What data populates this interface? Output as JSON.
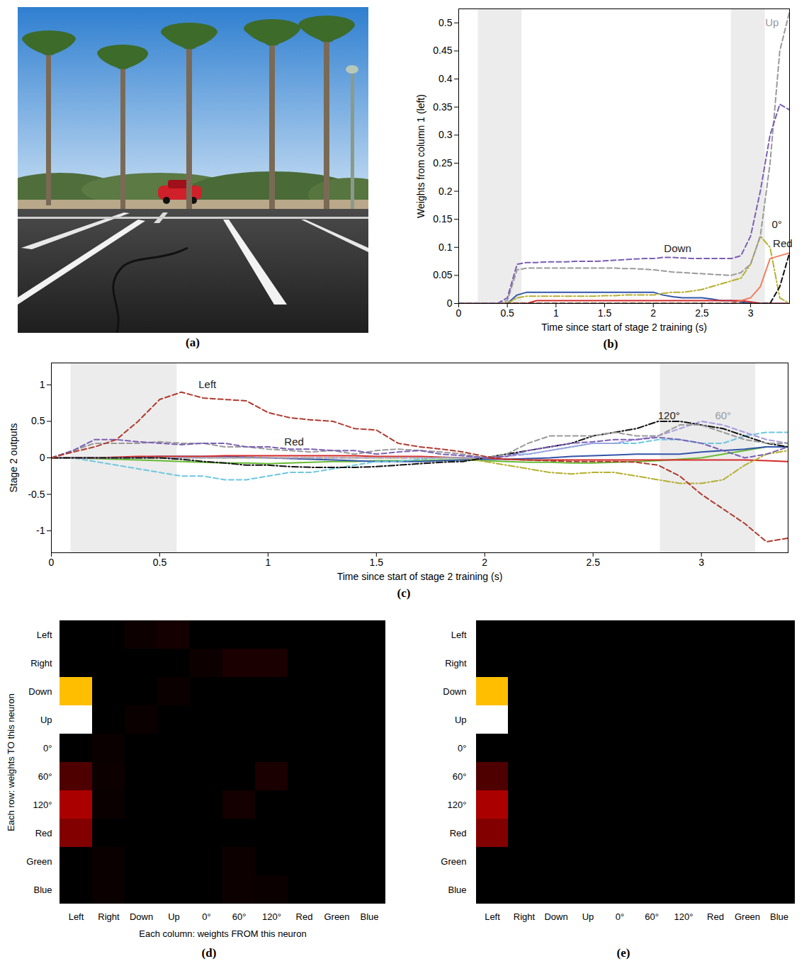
{
  "image": {
    "panel": "(a)"
  },
  "chart_data": [
    {
      "panel": "(b)",
      "type": "line",
      "x_label": "Time since start of stage 2 training (s)",
      "y_label": "Weights from column 1 (left)",
      "x": [
        0,
        0.1,
        0.2,
        0.3,
        0.4,
        0.5,
        0.6,
        0.7,
        0.8,
        0.9,
        1,
        1.1,
        1.2,
        1.3,
        1.4,
        1.5,
        1.6,
        1.7,
        1.8,
        1.9,
        2,
        2.1,
        2.2,
        2.3,
        2.4,
        2.5,
        2.6,
        2.7,
        2.8,
        2.9,
        3,
        3.1,
        3.2,
        3.3,
        3.4
      ],
      "xlim": [
        0,
        3.4
      ],
      "xticks": [
        0,
        0.5,
        1,
        1.5,
        2,
        2.5,
        3
      ],
      "ylim": [
        0,
        0.525
      ],
      "yticks": [
        0,
        0.05,
        0.1,
        0.15,
        0.2,
        0.25,
        0.3,
        0.35,
        0.4,
        0.45,
        0.5
      ],
      "shaded": [
        [
          0.2,
          0.65
        ],
        [
          2.8,
          3.15
        ]
      ],
      "series": [
        {
          "color": "#3355aa",
          "line_style": "solid",
          "values": [
            0,
            0,
            0,
            0,
            0,
            0,
            0.015,
            0.02,
            0.02,
            0.02,
            0.02,
            0.02,
            0.02,
            0.02,
            0.02,
            0.02,
            0.02,
            0.02,
            0.02,
            0.02,
            0.02,
            0.015,
            0.012,
            0.01,
            0.01,
            0.01,
            0.008,
            0.005,
            0.005,
            0.003,
            0,
            0,
            0,
            0,
            0
          ]
        },
        {
          "color": "#d62a2a",
          "line_style": "solid",
          "values": [
            0,
            0,
            0,
            0,
            0,
            0,
            0,
            0,
            0.005,
            0.005,
            0.005,
            0.005,
            0.005,
            0.005,
            0.005,
            0.005,
            0.005,
            0.005,
            0.005,
            0.005,
            0.005,
            0.005,
            0.005,
            0.005,
            0.005,
            0.005,
            0.005,
            0.005,
            0.005,
            0.005,
            0.003,
            0,
            0,
            0,
            0
          ]
        },
        {
          "color": "#b5b030",
          "line_style": "dashdot",
          "values": [
            0,
            0,
            0,
            0,
            0,
            0,
            0.01,
            0.013,
            0.013,
            0.013,
            0.013,
            0.013,
            0.013,
            0.013,
            0.013,
            0.014,
            0.014,
            0.015,
            0.015,
            0.015,
            0.015,
            0.018,
            0.02,
            0.02,
            0.022,
            0.025,
            0.03,
            0.035,
            0.04,
            0.045,
            0.07,
            0.12,
            0.1,
            0.01,
            0
          ]
        },
        {
          "color": "#f08060",
          "line_style": "solid",
          "values": [
            0,
            0,
            0,
            0,
            0,
            0,
            0,
            0,
            0,
            0,
            0,
            0,
            0,
            0,
            0,
            0,
            0,
            0,
            0,
            0,
            0,
            0,
            0,
            0,
            0,
            0,
            0,
            0,
            0,
            0.005,
            0.01,
            0.03,
            0.08,
            0.085,
            0.09
          ]
        },
        {
          "color": "#111111",
          "line_style": "dashed",
          "values": [
            0,
            0,
            0,
            0,
            0,
            0,
            0,
            0,
            0,
            0,
            0,
            0,
            0,
            0,
            0,
            0,
            0,
            0,
            0,
            0,
            0,
            0,
            0,
            0,
            0,
            0,
            0,
            0,
            0,
            0,
            0,
            0,
            0,
            0.03,
            0.09
          ]
        },
        {
          "color": "#9a9a9a",
          "line_style": "dashed",
          "values": [
            0,
            0,
            0,
            0,
            0,
            0.005,
            0.06,
            0.063,
            0.063,
            0.063,
            0.063,
            0.063,
            0.063,
            0.063,
            0.063,
            0.063,
            0.063,
            0.062,
            0.062,
            0.061,
            0.06,
            0.058,
            0.056,
            0.055,
            0.054,
            0.053,
            0.052,
            0.051,
            0.05,
            0.055,
            0.07,
            0.12,
            0.25,
            0.45,
            0.52
          ]
        },
        {
          "color": "#7b5fb5",
          "line_style": "dashed",
          "values": [
            0,
            0,
            0,
            0,
            0,
            0.01,
            0.07,
            0.073,
            0.073,
            0.074,
            0.074,
            0.074,
            0.075,
            0.075,
            0.075,
            0.076,
            0.077,
            0.078,
            0.079,
            0.08,
            0.08,
            0.082,
            0.082,
            0.081,
            0.08,
            0.08,
            0.08,
            0.08,
            0.08,
            0.085,
            0.12,
            0.2,
            0.3,
            0.355,
            0.345
          ]
        }
      ],
      "annotations": [
        {
          "text": "Down",
          "x": 2.25,
          "y": 0.098,
          "color": "#222222"
        },
        {
          "text": "Up",
          "x": 3.22,
          "y": 0.5,
          "color": "#999999"
        },
        {
          "text": "0°",
          "x": 3.27,
          "y": 0.14,
          "color": "#222222"
        },
        {
          "text": "Red",
          "x": 3.33,
          "y": 0.106,
          "color": "#222222"
        }
      ]
    },
    {
      "panel": "(c)",
      "type": "line",
      "x_label": "Time since start of stage 2 training (s)",
      "y_label": "Stage 2 outputs",
      "x": [
        0,
        0.1,
        0.2,
        0.3,
        0.4,
        0.5,
        0.6,
        0.7,
        0.8,
        0.9,
        1,
        1.1,
        1.2,
        1.3,
        1.4,
        1.5,
        1.6,
        1.7,
        1.8,
        1.9,
        2,
        2.1,
        2.2,
        2.3,
        2.4,
        2.5,
        2.6,
        2.7,
        2.8,
        2.9,
        3,
        3.1,
        3.2,
        3.3,
        3.4
      ],
      "xlim": [
        0,
        3.4
      ],
      "xticks": [
        0,
        0.5,
        1,
        1.5,
        2,
        2.5,
        3
      ],
      "ylim": [
        -1.3,
        1.3
      ],
      "yticks": [
        -1,
        -0.5,
        0,
        0.5,
        1
      ],
      "shaded": [
        [
          0.09,
          0.58
        ],
        [
          2.81,
          3.25
        ]
      ],
      "series": [
        {
          "color": "#66bb33",
          "line_style": "solid",
          "values": [
            0,
            0,
            -0.01,
            -0.02,
            -0.03,
            -0.04,
            -0.05,
            -0.06,
            -0.07,
            -0.07,
            -0.08,
            -0.07,
            -0.06,
            -0.05,
            -0.05,
            -0.04,
            -0.04,
            -0.04,
            -0.03,
            -0.03,
            -0.04,
            -0.05,
            -0.06,
            -0.06,
            -0.07,
            -0.07,
            -0.06,
            -0.05,
            -0.04,
            -0.02,
            0,
            0.05,
            0.1,
            0.15,
            0.15
          ]
        },
        {
          "color": "#3355aa",
          "line_style": "solid",
          "values": [
            0,
            0,
            0,
            0,
            0.01,
            0.02,
            0.02,
            0.02,
            0.02,
            0.01,
            0,
            -0.01,
            -0.02,
            -0.03,
            -0.04,
            -0.05,
            -0.05,
            -0.05,
            -0.04,
            -0.03,
            -0.02,
            -0.02,
            -0.01,
            0,
            0.02,
            0.03,
            0.04,
            0.05,
            0.05,
            0.05,
            0.08,
            0.1,
            0.12,
            0.15,
            0.15
          ]
        },
        {
          "color": "#d62a2a",
          "line_style": "solid",
          "values": [
            0,
            0,
            0,
            0.01,
            0.02,
            0.02,
            0.02,
            0.02,
            0.03,
            0.03,
            0.03,
            0.03,
            0.03,
            0.03,
            0.03,
            0.02,
            0.02,
            0.02,
            0.01,
            0,
            0,
            -0.02,
            -0.03,
            -0.03,
            -0.03,
            -0.03,
            -0.03,
            -0.03,
            -0.03,
            -0.03,
            -0.03,
            -0.03,
            -0.03,
            -0.04,
            -0.05
          ]
        },
        {
          "color": "#6cc7e0",
          "line_style": "dashed",
          "values": [
            0,
            0,
            -0.05,
            -0.1,
            -0.15,
            -0.2,
            -0.25,
            -0.25,
            -0.3,
            -0.3,
            -0.25,
            -0.2,
            -0.2,
            -0.15,
            -0.1,
            -0.05,
            -0.05,
            -0.02,
            0,
            0,
            0,
            0.05,
            0.05,
            0.1,
            0.15,
            0.2,
            0.2,
            0.2,
            0.25,
            0.25,
            0.2,
            0.2,
            0.3,
            0.35,
            0.35
          ]
        },
        {
          "color": "#b5b030",
          "line_style": "dashdot",
          "values": [
            0,
            0,
            0,
            0,
            0,
            0,
            0,
            0,
            0,
            0,
            0,
            0,
            0,
            0,
            0,
            0,
            0,
            0,
            0,
            0,
            -0.05,
            -0.1,
            -0.15,
            -0.2,
            -0.22,
            -0.2,
            -0.2,
            -0.25,
            -0.3,
            -0.35,
            -0.35,
            -0.3,
            -0.1,
            0.05,
            0.1
          ]
        },
        {
          "color": "#a89be0",
          "line_style": "dashed",
          "values": [
            0,
            0,
            0,
            0,
            0,
            0,
            0,
            0,
            0,
            0,
            0,
            0,
            0,
            0,
            0,
            0,
            0,
            0,
            0,
            0,
            0,
            0.02,
            0.05,
            0.1,
            0.15,
            0.2,
            0.2,
            0.25,
            0.3,
            0.4,
            0.5,
            0.45,
            0.35,
            0.25,
            0.2
          ]
        },
        {
          "color": "#111111",
          "line_style": "dashdot",
          "values": [
            0,
            0,
            0,
            0,
            0,
            0,
            -0.02,
            -0.05,
            -0.07,
            -0.1,
            -0.1,
            -0.12,
            -0.13,
            -0.13,
            -0.13,
            -0.12,
            -0.1,
            -0.08,
            -0.06,
            -0.05,
            0,
            0.05,
            0.1,
            0.15,
            0.2,
            0.3,
            0.35,
            0.4,
            0.5,
            0.5,
            0.45,
            0.4,
            0.3,
            0.2,
            0.15
          ]
        },
        {
          "color": "#9a9a9a",
          "line_style": "dashed",
          "values": [
            0,
            0.1,
            0.2,
            0.2,
            0.2,
            0.22,
            0.2,
            0.2,
            0.15,
            0.15,
            0.12,
            0.1,
            0.08,
            0.1,
            0.05,
            0.1,
            0.12,
            0.1,
            0.08,
            0.05,
            0,
            0.05,
            0.2,
            0.3,
            0.3,
            0.3,
            0.35,
            0.3,
            0.3,
            0.45,
            0.45,
            0.35,
            0.25,
            0.2,
            0.2
          ]
        },
        {
          "color": "#7b5fb5",
          "line_style": "dashed",
          "values": [
            0,
            0.1,
            0.25,
            0.25,
            0.22,
            0.2,
            0.18,
            0.2,
            0.2,
            0.15,
            0.15,
            0.12,
            0.12,
            0.1,
            0.1,
            0.05,
            0.08,
            0.1,
            0.05,
            0.03,
            0,
            0.02,
            0.1,
            0.15,
            0.2,
            0.22,
            0.25,
            0.25,
            0.28,
            0.25,
            0.2,
            0.1,
            0,
            0.05,
            0.15
          ]
        },
        {
          "color": "#b03a2e",
          "line_style": "dashed",
          "values": [
            0,
            0.08,
            0.15,
            0.25,
            0.5,
            0.8,
            0.9,
            0.82,
            0.8,
            0.78,
            0.62,
            0.55,
            0.52,
            0.5,
            0.4,
            0.38,
            0.2,
            0.15,
            0.12,
            0.08,
            0.02,
            -0.02,
            -0.03,
            -0.04,
            -0.05,
            -0.05,
            -0.05,
            -0.06,
            -0.1,
            -0.25,
            -0.5,
            -0.7,
            -0.9,
            -1.15,
            -1.1
          ]
        }
      ],
      "annotations": [
        {
          "text": "Left",
          "x": 0.72,
          "y": 1.0,
          "color": "#222222"
        },
        {
          "text": "Red",
          "x": 1.12,
          "y": 0.22,
          "color": "#222222"
        },
        {
          "text": "120°",
          "x": 2.85,
          "y": 0.58,
          "color": "#222222"
        },
        {
          "text": "60°",
          "x": 3.1,
          "y": 0.58,
          "color": "#999999"
        }
      ]
    },
    {
      "panel": "(d)",
      "type": "heatmap",
      "x_label": "Each column: weights FROM this neuron",
      "y_label": "Each row: weights TO this neuron",
      "categories": [
        "Left",
        "Right",
        "Down",
        "Up",
        "0°",
        "60°",
        "120°",
        "Red",
        "Green",
        "Blue"
      ],
      "zlim": [
        0,
        0.52
      ],
      "cells": [
        [
          0,
          0,
          0.01,
          0.015,
          0,
          0,
          0,
          0,
          0,
          0
        ],
        [
          0,
          0,
          0,
          0,
          0.01,
          0.02,
          0.02,
          0,
          0,
          0
        ],
        [
          0.34,
          0,
          0,
          0.008,
          0,
          0,
          0,
          0,
          0,
          0
        ],
        [
          0.52,
          0,
          0.008,
          0,
          0,
          0,
          0,
          0,
          0,
          0
        ],
        [
          0,
          0.008,
          0,
          0,
          0,
          0,
          0,
          0,
          0,
          0
        ],
        [
          0.06,
          0.01,
          0,
          0,
          0,
          0,
          0.02,
          0,
          0,
          0
        ],
        [
          0.13,
          0.008,
          0,
          0,
          0,
          0.015,
          0,
          0,
          0,
          0
        ],
        [
          0.1,
          0,
          0,
          0,
          0,
          0,
          0,
          0,
          0,
          0
        ],
        [
          0,
          0.008,
          0,
          0,
          0,
          0.01,
          0,
          0,
          0,
          0
        ],
        [
          0,
          0.008,
          0,
          0,
          0,
          0.01,
          0.008,
          0,
          0,
          0
        ]
      ]
    },
    {
      "panel": "(e)",
      "type": "heatmap",
      "categories": [
        "Left",
        "Right",
        "Down",
        "Up",
        "0°",
        "60°",
        "120°",
        "Red",
        "Green",
        "Blue"
      ],
      "zlim": [
        0,
        0.52
      ],
      "cells": [
        [
          0,
          0,
          0,
          0,
          0,
          0,
          0,
          0,
          0,
          0
        ],
        [
          0,
          0,
          0,
          0,
          0,
          0,
          0,
          0,
          0,
          0
        ],
        [
          0.34,
          0,
          0,
          0,
          0,
          0,
          0,
          0,
          0,
          0
        ],
        [
          0.52,
          0,
          0,
          0,
          0,
          0,
          0,
          0,
          0,
          0
        ],
        [
          0,
          0,
          0,
          0,
          0,
          0,
          0,
          0,
          0,
          0
        ],
        [
          0.06,
          0,
          0,
          0,
          0,
          0,
          0,
          0,
          0,
          0
        ],
        [
          0.13,
          0,
          0,
          0,
          0,
          0,
          0,
          0,
          0,
          0
        ],
        [
          0.1,
          0,
          0,
          0,
          0,
          0,
          0,
          0,
          0,
          0
        ],
        [
          0,
          0,
          0,
          0,
          0,
          0,
          0,
          0,
          0,
          0
        ],
        [
          0,
          0,
          0,
          0,
          0,
          0,
          0,
          0,
          0,
          0
        ]
      ]
    }
  ]
}
